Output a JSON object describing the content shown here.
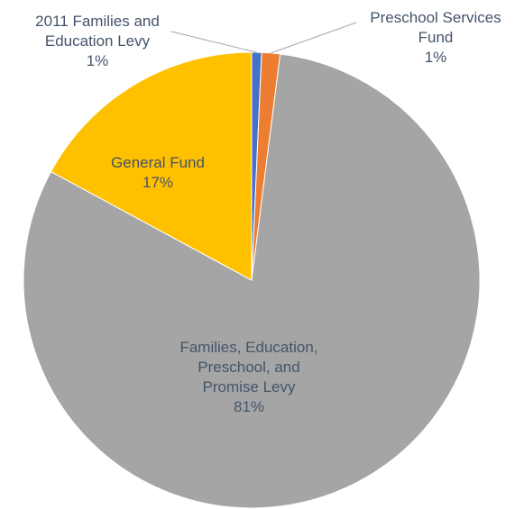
{
  "chart_data": {
    "type": "pie",
    "slices": [
      {
        "label_lines": [
          "2011 Families and",
          "Education Levy",
          "1%"
        ],
        "value": 0.7,
        "color": "#4472c4"
      },
      {
        "label_lines": [
          "Preschool Services",
          "Fund",
          "1%"
        ],
        "value": 1.3,
        "color": "#ed7d31"
      },
      {
        "label_lines": [
          "Families, Education,",
          "Preschool, and",
          "Promise Levy",
          "81%"
        ],
        "value": 80.9,
        "color": "#a5a5a5"
      },
      {
        "label_lines": [
          "General Fund",
          "17%"
        ],
        "value": 17.1,
        "color": "#ffc000"
      }
    ],
    "start_angle_deg": 0,
    "direction": "clockwise",
    "legend": "none"
  }
}
